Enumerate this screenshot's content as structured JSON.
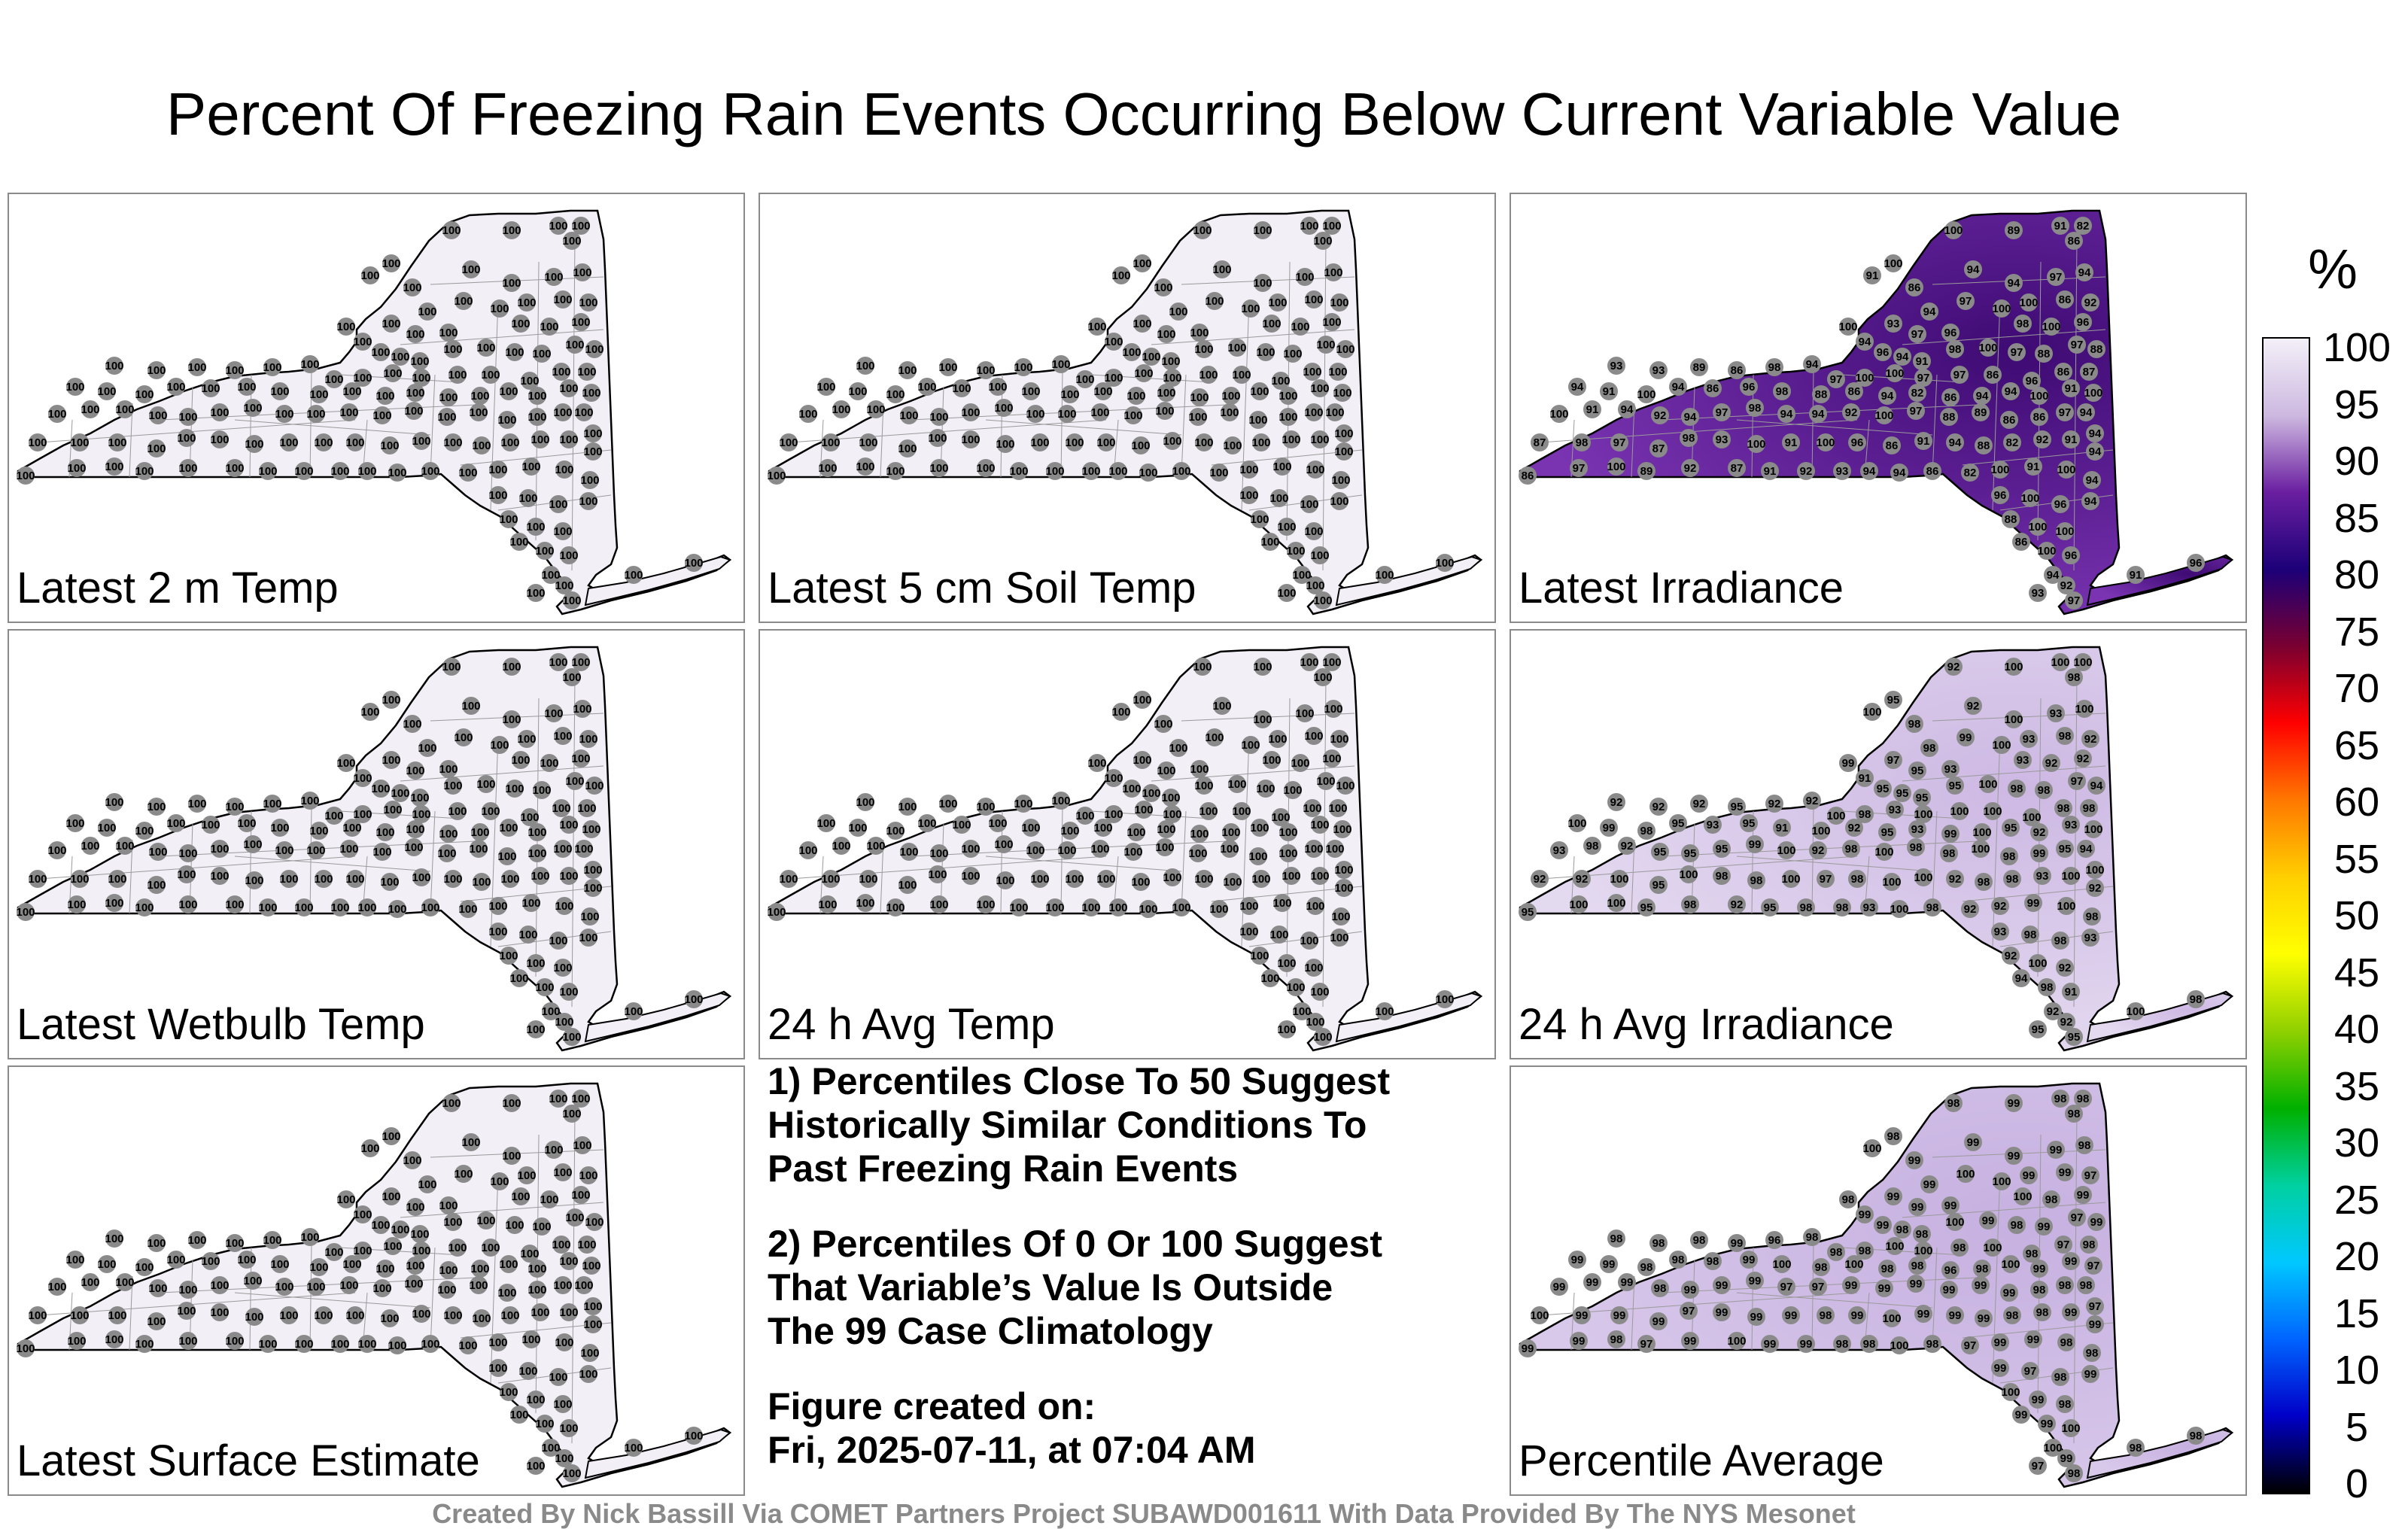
{
  "title": "Percent Of Freezing Rain Events Occurring Below Current Variable Value",
  "panels": [
    {
      "label": "Latest 2 m Temp",
      "field": "uniform",
      "values": [
        100
      ]
    },
    {
      "label": "Latest 5 cm Soil Temp",
      "field": "uniform",
      "values": [
        100
      ]
    },
    {
      "label": "Latest Irradiance",
      "field": "dark",
      "values": [
        100,
        100,
        91,
        100,
        86,
        91,
        82,
        87,
        86,
        89,
        92,
        88,
        89,
        94,
        100,
        94,
        92,
        94,
        93,
        97,
        96,
        98,
        100,
        98,
        100,
        94,
        96,
        93,
        91,
        97,
        100,
        98,
        94,
        89,
        88,
        93,
        93,
        88,
        86,
        94,
        94,
        97,
        86,
        100,
        97,
        96,
        91,
        96,
        86,
        87,
        89,
        82,
        100,
        94,
        86,
        92
      ]
    },
    {
      "label": "Latest Wetbulb Temp",
      "field": "uniform",
      "values": [
        100
      ]
    },
    {
      "label": "24 h Avg Temp",
      "field": "uniform",
      "values": [
        100
      ]
    },
    {
      "label": "24 h Avg Irradiance",
      "field": "light",
      "values": [
        100,
        100,
        100,
        92,
        98,
        100,
        95,
        97,
        100,
        95,
        95,
        99,
        99,
        100,
        100,
        98,
        94,
        98,
        97,
        98,
        93,
        93,
        92,
        92,
        92,
        91,
        100
      ]
    },
    {
      "label": "Latest Surface Estimate",
      "field": "uniform",
      "values": [
        100
      ]
    },
    {
      "label": "Percentile Average",
      "field": "medium",
      "values": [
        100,
        100,
        99,
        98,
        98,
        97,
        98,
        99,
        99,
        99,
        99,
        98,
        100,
        99,
        99,
        99,
        98,
        98,
        99,
        98,
        97,
        98,
        99,
        99,
        98,
        97,
        99,
        96,
        98,
        100,
        99,
        98,
        100,
        97
      ]
    }
  ],
  "notes": {
    "note1": [
      "1) Percentiles Close To 50 Suggest",
      "Historically Similar Conditions To",
      "Past Freezing Rain Events"
    ],
    "note2": [
      "2) Percentiles Of 0 Or 100 Suggest",
      "That Variable’s Value Is Outside",
      "The 99 Case Climatology"
    ],
    "created": [
      "Figure created on:",
      "Fri, 2025-07-11, at 07:04 AM"
    ]
  },
  "colorbar": {
    "unit": "%",
    "ticks": [
      "100",
      "95",
      "90",
      "85",
      "80",
      "75",
      "70",
      "65",
      "60",
      "55",
      "50",
      "45",
      "40",
      "35",
      "30",
      "25",
      "20",
      "15",
      "10",
      "5",
      "0"
    ],
    "colors": [
      "#f3f0f8",
      "#cdb8e0",
      "#6a1fa0",
      "#1c0078",
      "#7a0030",
      "#ff0000",
      "#ff7800",
      "#ffd000",
      "#ffff00",
      "#90d000",
      "#00b000",
      "#00d0a0",
      "#00c8ff",
      "#0064ff",
      "#0000c8",
      "#000000"
    ]
  },
  "credit": "Created By Nick Bassill Via COMET Partners Project SUBAWD001611 With Data Provided By The NYS Mesonet",
  "colors": {
    "uniform": "#f2eff7",
    "light": "#e4daf0",
    "medium": "#d8c8ea",
    "dark": "#5a168f",
    "station": "#8a8a8a",
    "border": "#000000"
  }
}
